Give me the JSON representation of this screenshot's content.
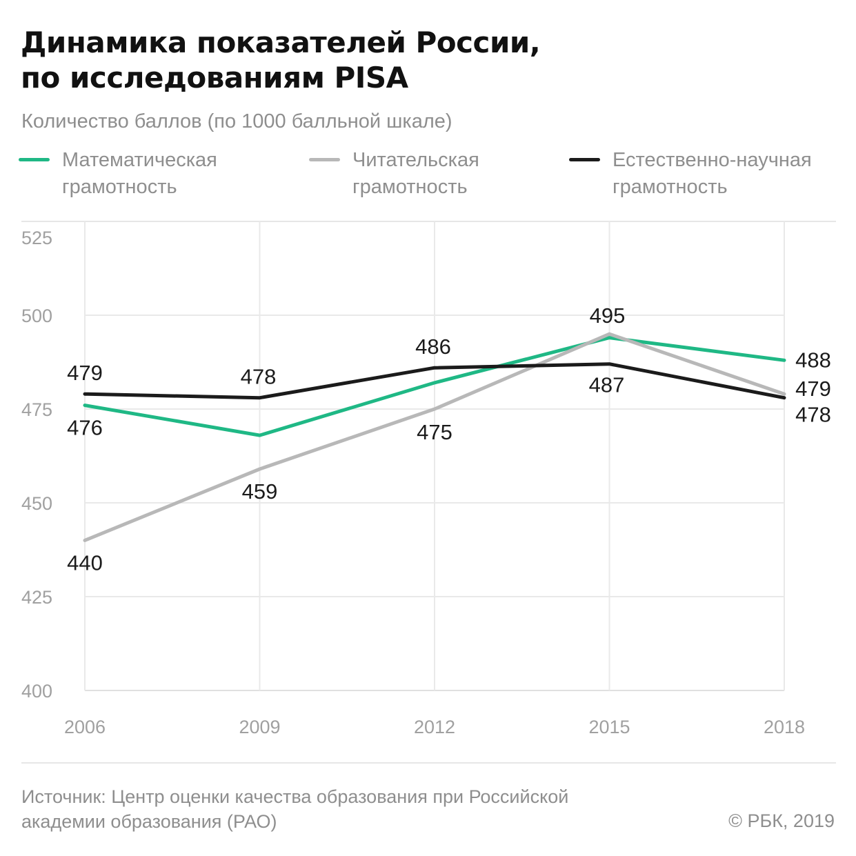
{
  "header": {
    "title_line1": "Динамика показателей России,",
    "title_line2": "по исследованиям PISA",
    "subtitle": "Количество баллов (по 1000 балльной шкале)"
  },
  "legend": [
    {
      "line1": "Математическая",
      "line2": "грамотность",
      "color": "#1fb885"
    },
    {
      "line1": "Читательская",
      "line2": "грамотность",
      "color": "#b8b8b8"
    },
    {
      "line1": "Естественно-научная",
      "line2": "грамотность",
      "color": "#1b1b1b"
    }
  ],
  "chart_data": {
    "type": "line",
    "categories": [
      "2006",
      "2009",
      "2012",
      "2015",
      "2018"
    ],
    "x": [
      2006,
      2009,
      2012,
      2015,
      2018
    ],
    "ylim": [
      400,
      525
    ],
    "yticks": [
      400,
      425,
      450,
      475,
      500,
      525
    ],
    "grid": true,
    "legend_placement": "top",
    "series": [
      {
        "name": "Математическая грамотность",
        "color": "#1fb885",
        "values": [
          476,
          468,
          482,
          494,
          488
        ],
        "labels": [
          "476",
          "",
          "",
          "",
          "488"
        ]
      },
      {
        "name": "Читательская грамотность",
        "color": "#b8b8b8",
        "values": [
          440,
          459,
          475,
          495,
          479
        ],
        "labels": [
          "440",
          "459",
          "475",
          "495",
          "479"
        ]
      },
      {
        "name": "Естественно-научная грамотность",
        "color": "#1b1b1b",
        "values": [
          479,
          478,
          486,
          487,
          478
        ],
        "labels": [
          "479",
          "478",
          "486",
          "487",
          "478"
        ]
      }
    ]
  },
  "footer": {
    "source_line1": "Источник: Центр оценки качества образования при Российской",
    "source_line2": "академии образования (РАО)",
    "copyright": "© РБК, 2019"
  }
}
